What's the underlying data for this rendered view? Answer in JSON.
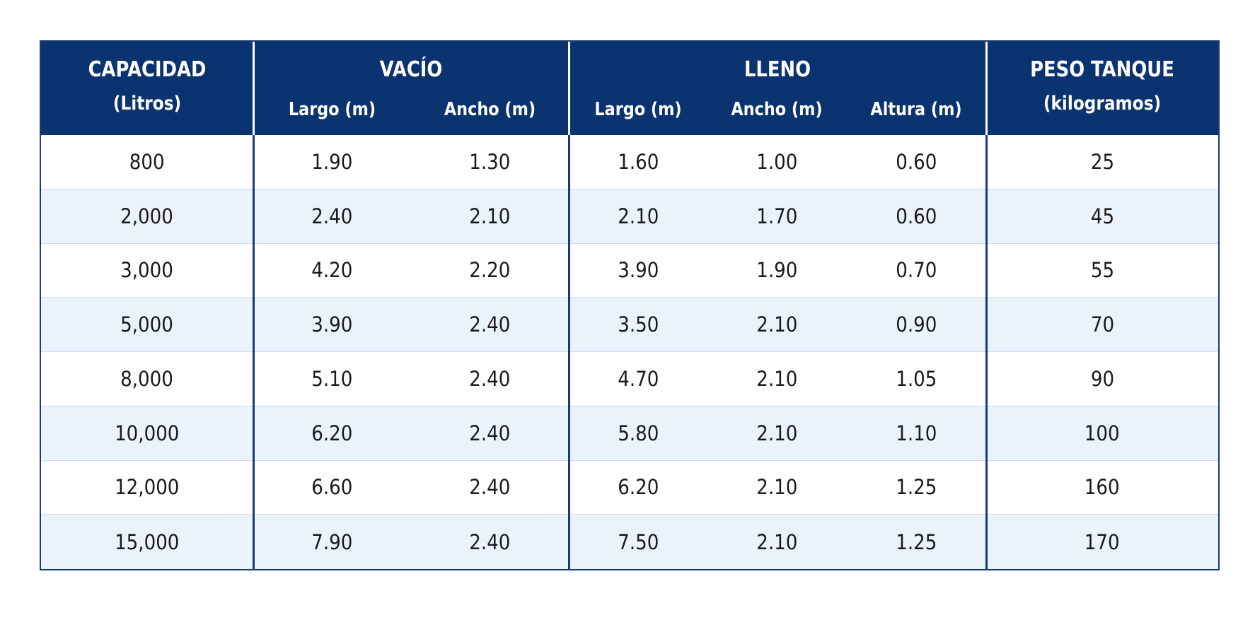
{
  "table": {
    "groups": {
      "capacidad": {
        "title": "CAPACIDAD",
        "subtitle": "(Litros)"
      },
      "vacio": {
        "title": "VACÍO"
      },
      "lleno": {
        "title": "LLENO"
      },
      "peso": {
        "title": "PESO TANQUE",
        "subtitle": "(kilogramos)"
      }
    },
    "columns": [
      "Largo (m)",
      "Ancho (m)",
      "Largo (m)",
      "Ancho (m)",
      "Altura (m)"
    ],
    "rows": [
      [
        "800",
        "1.90",
        "1.30",
        "1.60",
        "1.00",
        "0.60",
        "25"
      ],
      [
        "2,000",
        "2.40",
        "2.10",
        "2.10",
        "1.70",
        "0.60",
        "45"
      ],
      [
        "3,000",
        "4.20",
        "2.20",
        "3.90",
        "1.90",
        "0.70",
        "55"
      ],
      [
        "5,000",
        "3.90",
        "2.40",
        "3.50",
        "2.10",
        "0.90",
        "70"
      ],
      [
        "8,000",
        "5.10",
        "2.40",
        "4.70",
        "2.10",
        "1.05",
        "90"
      ],
      [
        "10,000",
        "6.20",
        "2.40",
        "5.80",
        "2.10",
        "1.10",
        "100"
      ],
      [
        "12,000",
        "6.60",
        "2.40",
        "6.20",
        "2.10",
        "1.25",
        "160"
      ],
      [
        "15,000",
        "7.90",
        "2.40",
        "7.50",
        "2.10",
        "1.25",
        "170"
      ]
    ],
    "colors": {
      "header_bg": "#0b3370",
      "border": "#1b3a7a",
      "row_alt": "#eaf2fc"
    }
  }
}
